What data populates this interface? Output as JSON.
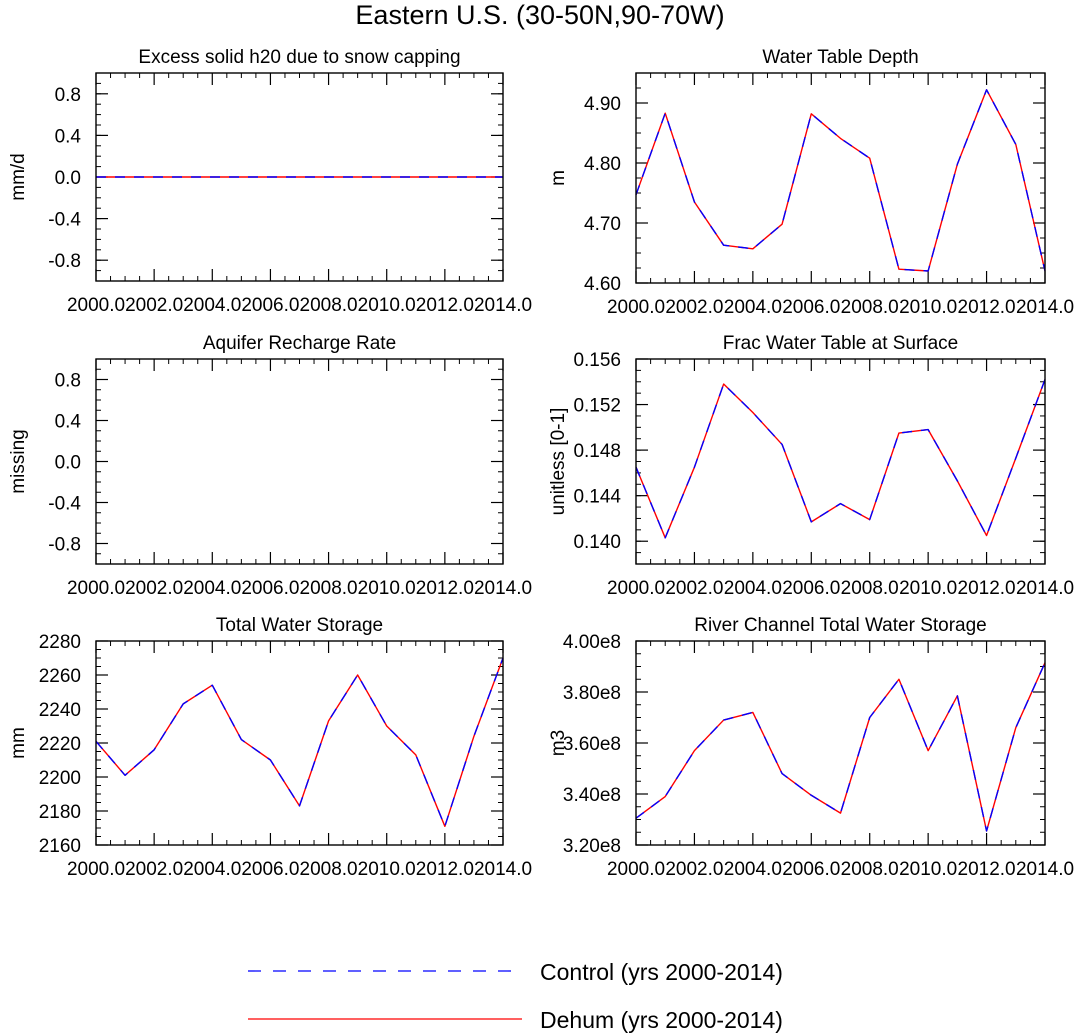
{
  "figure": {
    "title": "Eastern U.S. (30-50N,90-70W)"
  },
  "colors": {
    "control": "#0000ff",
    "dehum": "#ff0000",
    "axis": "#000000",
    "background": "#ffffff"
  },
  "legend": {
    "entries": [
      {
        "label": "Control (yrs 2000-2014)",
        "style": "dashed",
        "color": "#0000ff"
      },
      {
        "label": "Dehum (yrs 2000-2014)",
        "style": "solid",
        "color": "#ff0000"
      }
    ]
  },
  "chart_data": [
    {
      "type": "line",
      "title": "Excess solid h20 due to snow capping",
      "ylabel": "mm/d",
      "xlabel": "",
      "xlim": [
        2000,
        2014
      ],
      "ylim": [
        -1.0,
        1.0
      ],
      "xticks": [
        "2000.0",
        "2002.0",
        "2004.0",
        "2006.0",
        "2008.0",
        "2010.0",
        "2012.0",
        "2014.0"
      ],
      "yticks": [
        "0.8",
        "0.4",
        "0.0",
        "-0.4",
        "-0.8"
      ],
      "x": [
        2000,
        2001,
        2002,
        2003,
        2004,
        2005,
        2006,
        2007,
        2008,
        2009,
        2010,
        2011,
        2012,
        2013,
        2014
      ],
      "series": [
        {
          "name": "Control (yrs 2000-2014)",
          "values": [
            0,
            0,
            0,
            0,
            0,
            0,
            0,
            0,
            0,
            0,
            0,
            0,
            0,
            0,
            0
          ]
        },
        {
          "name": "Dehum (yrs 2000-2014)",
          "values": [
            0,
            0,
            0,
            0,
            0,
            0,
            0,
            0,
            0,
            0,
            0,
            0,
            0,
            0,
            0
          ]
        }
      ]
    },
    {
      "type": "line",
      "title": "Water Table Depth",
      "ylabel": "m",
      "xlabel": "",
      "xlim": [
        2000,
        2014
      ],
      "ylim": [
        4.6,
        4.95
      ],
      "xticks": [
        "2000.0",
        "2002.0",
        "2004.0",
        "2006.0",
        "2008.0",
        "2010.0",
        "2012.0",
        "2014.0"
      ],
      "yticks": [
        "4.90",
        "4.80",
        "4.70",
        "4.60"
      ],
      "x": [
        2000,
        2001,
        2002,
        2003,
        2004,
        2005,
        2006,
        2007,
        2008,
        2009,
        2010,
        2011,
        2012,
        2013,
        2014
      ],
      "series": [
        {
          "name": "Control (yrs 2000-2014)",
          "values": [
            4.747,
            4.883,
            4.735,
            4.663,
            4.657,
            4.698,
            4.882,
            4.841,
            4.808,
            4.623,
            4.62,
            4.798,
            4.922,
            4.831,
            4.62
          ]
        },
        {
          "name": "Dehum (yrs 2000-2014)",
          "values": [
            4.747,
            4.883,
            4.735,
            4.663,
            4.657,
            4.698,
            4.882,
            4.841,
            4.808,
            4.623,
            4.62,
            4.798,
            4.922,
            4.831,
            4.62
          ]
        }
      ]
    },
    {
      "type": "line",
      "title": "Aquifer Recharge Rate",
      "ylabel": "missing",
      "xlabel": "",
      "xlim": [
        2000,
        2014
      ],
      "ylim": [
        -1.0,
        1.0
      ],
      "xticks": [
        "2000.0",
        "2002.0",
        "2004.0",
        "2006.0",
        "2008.0",
        "2010.0",
        "2012.0",
        "2014.0"
      ],
      "yticks": [
        "0.8",
        "0.4",
        "0.0",
        "-0.4",
        "-0.8"
      ],
      "x": [],
      "series": []
    },
    {
      "type": "line",
      "title": "Frac Water Table at Surface",
      "ylabel": "unitless [0-1]",
      "xlabel": "",
      "xlim": [
        2000,
        2014
      ],
      "ylim": [
        0.138,
        0.156
      ],
      "xticks": [
        "2000.0",
        "2002.0",
        "2004.0",
        "2006.0",
        "2008.0",
        "2010.0",
        "2012.0",
        "2014.0"
      ],
      "yticks": [
        "0.156",
        "0.152",
        "0.148",
        "0.144",
        "0.140"
      ],
      "x": [
        2000,
        2001,
        2002,
        2003,
        2004,
        2005,
        2006,
        2007,
        2008,
        2009,
        2010,
        2011,
        2012,
        2013,
        2014
      ],
      "series": [
        {
          "name": "Control (yrs 2000-2014)",
          "values": [
            0.1465,
            0.1403,
            0.1465,
            0.1538,
            0.1513,
            0.1485,
            0.1417,
            0.1433,
            0.1419,
            0.1495,
            0.1498,
            0.1453,
            0.1405,
            0.1473,
            0.1542
          ]
        },
        {
          "name": "Dehum (yrs 2000-2014)",
          "values": [
            0.1465,
            0.1403,
            0.1465,
            0.1538,
            0.1513,
            0.1485,
            0.1417,
            0.1433,
            0.1419,
            0.1495,
            0.1498,
            0.1453,
            0.1405,
            0.1473,
            0.1542
          ]
        }
      ]
    },
    {
      "type": "line",
      "title": "Total Water Storage",
      "ylabel": "mm",
      "xlabel": "",
      "xlim": [
        2000,
        2014
      ],
      "ylim": [
        2160,
        2280
      ],
      "xticks": [
        "2000.0",
        "2002.0",
        "2004.0",
        "2006.0",
        "2008.0",
        "2010.0",
        "2012.0",
        "2014.0"
      ],
      "yticks": [
        "2280",
        "2260",
        "2240",
        "2220",
        "2200",
        "2180",
        "2160"
      ],
      "x": [
        2000,
        2001,
        2002,
        2003,
        2004,
        2005,
        2006,
        2007,
        2008,
        2009,
        2010,
        2011,
        2012,
        2013,
        2014
      ],
      "series": [
        {
          "name": "Control (yrs 2000-2014)",
          "values": [
            2221,
            2201,
            2216,
            2243,
            2254,
            2222,
            2210,
            2183,
            2233,
            2260,
            2230,
            2213,
            2171,
            2224,
            2270
          ]
        },
        {
          "name": "Dehum (yrs 2000-2014)",
          "values": [
            2221,
            2201,
            2216,
            2243,
            2254,
            2222,
            2210,
            2183,
            2233,
            2260,
            2230,
            2213,
            2171,
            2224,
            2270
          ]
        }
      ]
    },
    {
      "type": "line",
      "title": "River Channel Total Water Storage",
      "ylabel": "m3",
      "xlabel": "",
      "xlim": [
        2000,
        2014
      ],
      "ylim": [
        320000000,
        400000000
      ],
      "xticks": [
        "2000.0",
        "2002.0",
        "2004.0",
        "2006.0",
        "2008.0",
        "2010.0",
        "2012.0",
        "2014.0"
      ],
      "yticks": [
        "4.00e8",
        "3.80e8",
        "3.60e8",
        "3.40e8",
        "3.20e8"
      ],
      "x": [
        2000,
        2001,
        2002,
        2003,
        2004,
        2005,
        2006,
        2007,
        2008,
        2009,
        2010,
        2011,
        2012,
        2013,
        2014
      ],
      "series": [
        {
          "name": "Control (yrs 2000-2014)",
          "values": [
            330500000,
            339000000,
            357000000,
            369000000,
            372000000,
            348000000,
            339500000,
            332500000,
            370000000,
            385000000,
            357000000,
            378500000,
            325500000,
            366000000,
            391500000
          ]
        },
        {
          "name": "Dehum (yrs 2000-2014)",
          "values": [
            330500000,
            339000000,
            357000000,
            369000000,
            372000000,
            348000000,
            339500000,
            332500000,
            370000000,
            385000000,
            357000000,
            378500000,
            325500000,
            366000000,
            391500000
          ]
        }
      ]
    }
  ]
}
